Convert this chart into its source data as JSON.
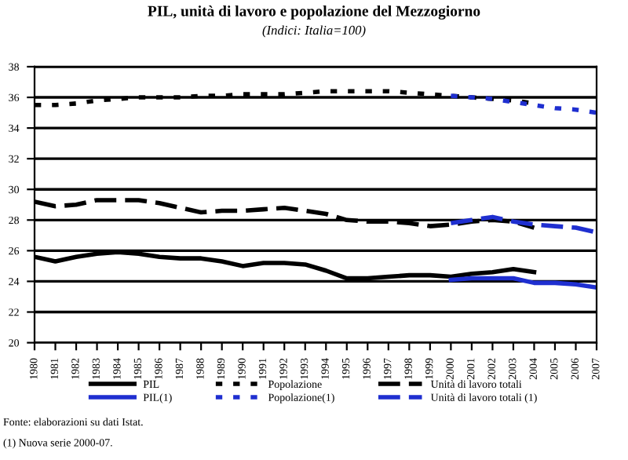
{
  "chart_data": {
    "type": "line",
    "title": "PIL, unità di lavoro e popolazione del Mezzogiorno",
    "subtitle": "(Indici: Italia=100)",
    "categories": [
      "1980",
      "1981",
      "1982",
      "1983",
      "1984",
      "1985",
      "1986",
      "1987",
      "1988",
      "1989",
      "1990",
      "1991",
      "1992",
      "1993",
      "1994",
      "1995",
      "1996",
      "1997",
      "1998",
      "1999",
      "2000",
      "2001",
      "2002",
      "2003",
      "2004",
      "2005",
      "2006",
      "2007"
    ],
    "series": [
      {
        "name": "PIL",
        "color": "#000000",
        "line_style": "solid",
        "values": [
          25.6,
          25.3,
          25.6,
          25.8,
          25.9,
          25.8,
          25.6,
          25.5,
          25.5,
          25.3,
          25.0,
          25.2,
          25.2,
          25.1,
          24.7,
          24.2,
          24.2,
          24.3,
          24.4,
          24.4,
          24.3,
          24.5,
          24.6,
          24.8,
          24.6,
          null,
          null,
          null
        ]
      },
      {
        "name": "Popolazione",
        "color": "#000000",
        "line_style": "dotted",
        "values": [
          35.5,
          35.5,
          35.6,
          35.8,
          35.9,
          36.0,
          36.0,
          36.0,
          36.1,
          36.1,
          36.2,
          36.2,
          36.2,
          36.3,
          36.4,
          36.4,
          36.4,
          36.4,
          36.3,
          36.2,
          36.1,
          36.0,
          35.9,
          35.8,
          35.6,
          null,
          null,
          null
        ]
      },
      {
        "name": "Unità di lavoro totali",
        "color": "#000000",
        "line_style": "dashed",
        "values": [
          29.2,
          28.9,
          29.0,
          29.3,
          29.3,
          29.3,
          29.1,
          28.8,
          28.5,
          28.6,
          28.6,
          28.7,
          28.8,
          28.6,
          28.4,
          28.0,
          27.9,
          27.9,
          27.8,
          27.6,
          27.7,
          27.9,
          28.0,
          27.9,
          27.5,
          null,
          null,
          null
        ]
      },
      {
        "name": "PIL(1)",
        "color": "#1f2fd0",
        "line_style": "solid",
        "values": [
          null,
          null,
          null,
          null,
          null,
          null,
          null,
          null,
          null,
          null,
          null,
          null,
          null,
          null,
          null,
          null,
          null,
          null,
          null,
          null,
          24.1,
          24.2,
          24.2,
          24.2,
          23.9,
          23.9,
          23.8,
          23.6
        ]
      },
      {
        "name": "Popolazione(1)",
        "color": "#1f2fd0",
        "line_style": "dotted",
        "values": [
          null,
          null,
          null,
          null,
          null,
          null,
          null,
          null,
          null,
          null,
          null,
          null,
          null,
          null,
          null,
          null,
          null,
          null,
          null,
          null,
          36.1,
          36.0,
          35.9,
          35.7,
          35.5,
          35.3,
          35.2,
          35.0
        ]
      },
      {
        "name": "Unità di lavoro totali (1)",
        "color": "#1f2fd0",
        "line_style": "dashed",
        "values": [
          null,
          null,
          null,
          null,
          null,
          null,
          null,
          null,
          null,
          null,
          null,
          null,
          null,
          null,
          null,
          null,
          null,
          null,
          null,
          null,
          27.8,
          28.0,
          28.2,
          27.9,
          27.7,
          27.6,
          27.5,
          27.2
        ]
      }
    ],
    "ylim": [
      20,
      38
    ],
    "yticks": [
      20,
      22,
      24,
      26,
      28,
      30,
      32,
      34,
      36,
      38
    ],
    "grid": "y",
    "legend": "bottom",
    "annotations": [
      "Fonte: elaborazioni su dati Istat.",
      "(1) Nuova serie 2000-07."
    ]
  }
}
